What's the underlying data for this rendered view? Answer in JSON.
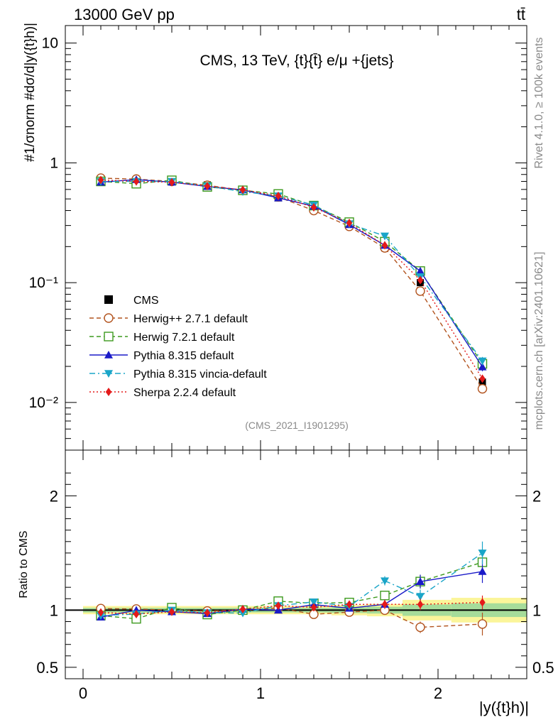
{
  "header": {
    "left": "13000 GeV pp",
    "right": "tt̄"
  },
  "side_labels": {
    "rivet": "Rivet 4.1.0, ≥ 100k events",
    "mcplots": "mcplots.cern.ch [arXiv:2401.10621]"
  },
  "chart_data": {
    "type": "line",
    "title": "CMS, 13 TeV, {t}{t̄} e/μ +{jets}",
    "analysis_id": "(CMS_2021_I1901295)",
    "xlabel": "|y({t}h)|",
    "ylabel": "#1/σnorm #dσ/d|y({t}h)|",
    "ratio_ylabel": "Ratio to CMS",
    "xlim": [
      -0.1,
      2.5
    ],
    "ylim_main": [
      0.004,
      14
    ],
    "ylim_ratio": [
      0.4,
      2.4
    ],
    "x_ticks": [
      "0",
      "1",
      "2"
    ],
    "y_ticks_main": [
      "10",
      "1",
      "10⁻¹",
      "10⁻²"
    ],
    "y_ticks_ratio": [
      "2",
      "1",
      "0.5"
    ],
    "x": [
      0.1,
      0.3,
      0.5,
      0.7,
      0.9,
      1.1,
      1.3,
      1.5,
      1.7,
      1.9,
      2.25
    ],
    "data": {
      "name": "CMS",
      "values": [
        0.735,
        0.725,
        0.7,
        0.655,
        0.59,
        0.51,
        0.415,
        0.3,
        0.195,
        0.1,
        0.0148
      ],
      "band_rel": [
        0.02,
        0.02,
        0.02,
        0.02,
        0.02,
        0.02,
        0.02,
        0.025,
        0.03,
        0.05,
        0.06
      ]
    },
    "series": [
      {
        "name": "Herwig++ 2.7.1 default",
        "color": "#b2531e",
        "dash": "6,4",
        "marker": "circle-open",
        "values": [
          0.745,
          0.732,
          0.7,
          0.65,
          0.59,
          0.52,
          0.4,
          0.295,
          0.195,
          0.085,
          0.013
        ],
        "ratio_err": [
          0,
          0,
          0,
          0,
          0,
          0.01,
          0.02,
          0.03,
          0.04,
          0.05,
          0.1
        ]
      },
      {
        "name": "Herwig 7.2.1 default",
        "color": "#3d9a1e",
        "dash": "6,4",
        "marker": "square-open",
        "values": [
          0.7,
          0.67,
          0.715,
          0.63,
          0.59,
          0.55,
          0.44,
          0.32,
          0.22,
          0.125,
          0.021
        ],
        "ratio_err": [
          0,
          0,
          0,
          0,
          0,
          0.01,
          0.02,
          0.03,
          0.04,
          0.06,
          0.1
        ]
      },
      {
        "name": "Pythia 8.315 default",
        "color": "#1a1ac8",
        "dash": "",
        "marker": "triangle-up",
        "values": [
          0.69,
          0.725,
          0.69,
          0.635,
          0.595,
          0.51,
          0.435,
          0.305,
          0.205,
          0.125,
          0.0198
        ],
        "ratio_err": [
          0,
          0,
          0,
          0,
          0,
          0.01,
          0.02,
          0.03,
          0.04,
          0.06,
          0.1
        ]
      },
      {
        "name": "Pythia 8.315 vincia-default",
        "color": "#1aa5c8",
        "dash": "8,4,2,4",
        "marker": "triangle-down",
        "values": [
          0.7,
          0.7,
          0.7,
          0.64,
          0.575,
          0.53,
          0.445,
          0.31,
          0.245,
          0.112,
          0.0222
        ],
        "ratio_err": [
          0,
          0,
          0,
          0,
          0,
          0.01,
          0.02,
          0.03,
          0.04,
          0.06,
          0.1
        ]
      },
      {
        "name": "Sherpa 2.2.4 default",
        "color": "#e41a1a",
        "dash": "2,3",
        "marker": "diamond",
        "values": [
          0.72,
          0.7,
          0.69,
          0.64,
          0.595,
          0.53,
          0.425,
          0.315,
          0.205,
          0.105,
          0.0158
        ],
        "ratio_err": [
          0,
          0,
          0,
          0,
          0,
          0.01,
          0.02,
          0.03,
          0.04,
          0.05,
          0.06
        ]
      }
    ]
  }
}
